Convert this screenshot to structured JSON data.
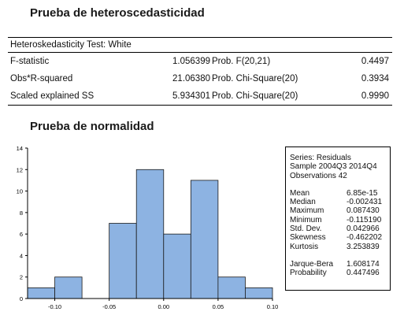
{
  "sections": {
    "heteroscedasticity_title": "Prueba de heteroscedasticidad",
    "normality_title": "Prueba de normalidad"
  },
  "white_test": {
    "caption": "Heteroskedasticity Test: White",
    "rows": [
      {
        "label": "F-statistic",
        "value": "1.056399",
        "test": "Prob. F(20,21)",
        "prob": "0.4497"
      },
      {
        "label": "Obs*R-squared",
        "value": "21.06380",
        "test": "Prob. Chi-Square(20)",
        "prob": "0.3934"
      },
      {
        "label": "Scaled explained SS",
        "value": "5.934301",
        "test": "Prob. Chi-Square(20)",
        "prob": "0.9990"
      }
    ]
  },
  "stats_box": {
    "series": "Series: Residuals",
    "sample": "Sample 2004Q3 2014Q4",
    "observations": "Observations 42",
    "rows": [
      {
        "k": "Mean",
        "v": "6.85e-15"
      },
      {
        "k": "Median",
        "v": "-0.002431"
      },
      {
        "k": "Maximum",
        "v": "0.087430"
      },
      {
        "k": "Minimum",
        "v": "-0.115190"
      },
      {
        "k": "Std. Dev.",
        "v": "0.042966"
      },
      {
        "k": "Skewness",
        "v": "-0.462202"
      },
      {
        "k": "Kurtosis",
        "v": "3.253839"
      }
    ],
    "jb_rows": [
      {
        "k": "Jarque-Bera",
        "v": "1.608174"
      },
      {
        "k": "Probability",
        "v": "0.447496"
      }
    ]
  },
  "chart_data": {
    "type": "bar",
    "title": "",
    "bar_color": "#8db3e2",
    "bin_edges": [
      -0.125,
      -0.1,
      -0.075,
      -0.05,
      -0.025,
      0.0,
      0.025,
      0.05,
      0.075,
      0.1
    ],
    "values": [
      1,
      2,
      0,
      7,
      12,
      6,
      11,
      2,
      1
    ],
    "xlim": [
      -0.125,
      0.1
    ],
    "ylim": [
      0,
      14
    ],
    "x_ticks": [
      -0.1,
      -0.05,
      0.0,
      0.05,
      0.1
    ],
    "x_tick_labels": [
      "-0.10",
      "-0.05",
      "0.00",
      "0.05",
      "0.10"
    ],
    "y_ticks": [
      0,
      2,
      4,
      6,
      8,
      10,
      12,
      14
    ],
    "y_tick_labels": [
      "0",
      "2",
      "4",
      "6",
      "8",
      "10",
      "12",
      "14"
    ],
    "grid": false,
    "xlabel": "",
    "ylabel": ""
  }
}
